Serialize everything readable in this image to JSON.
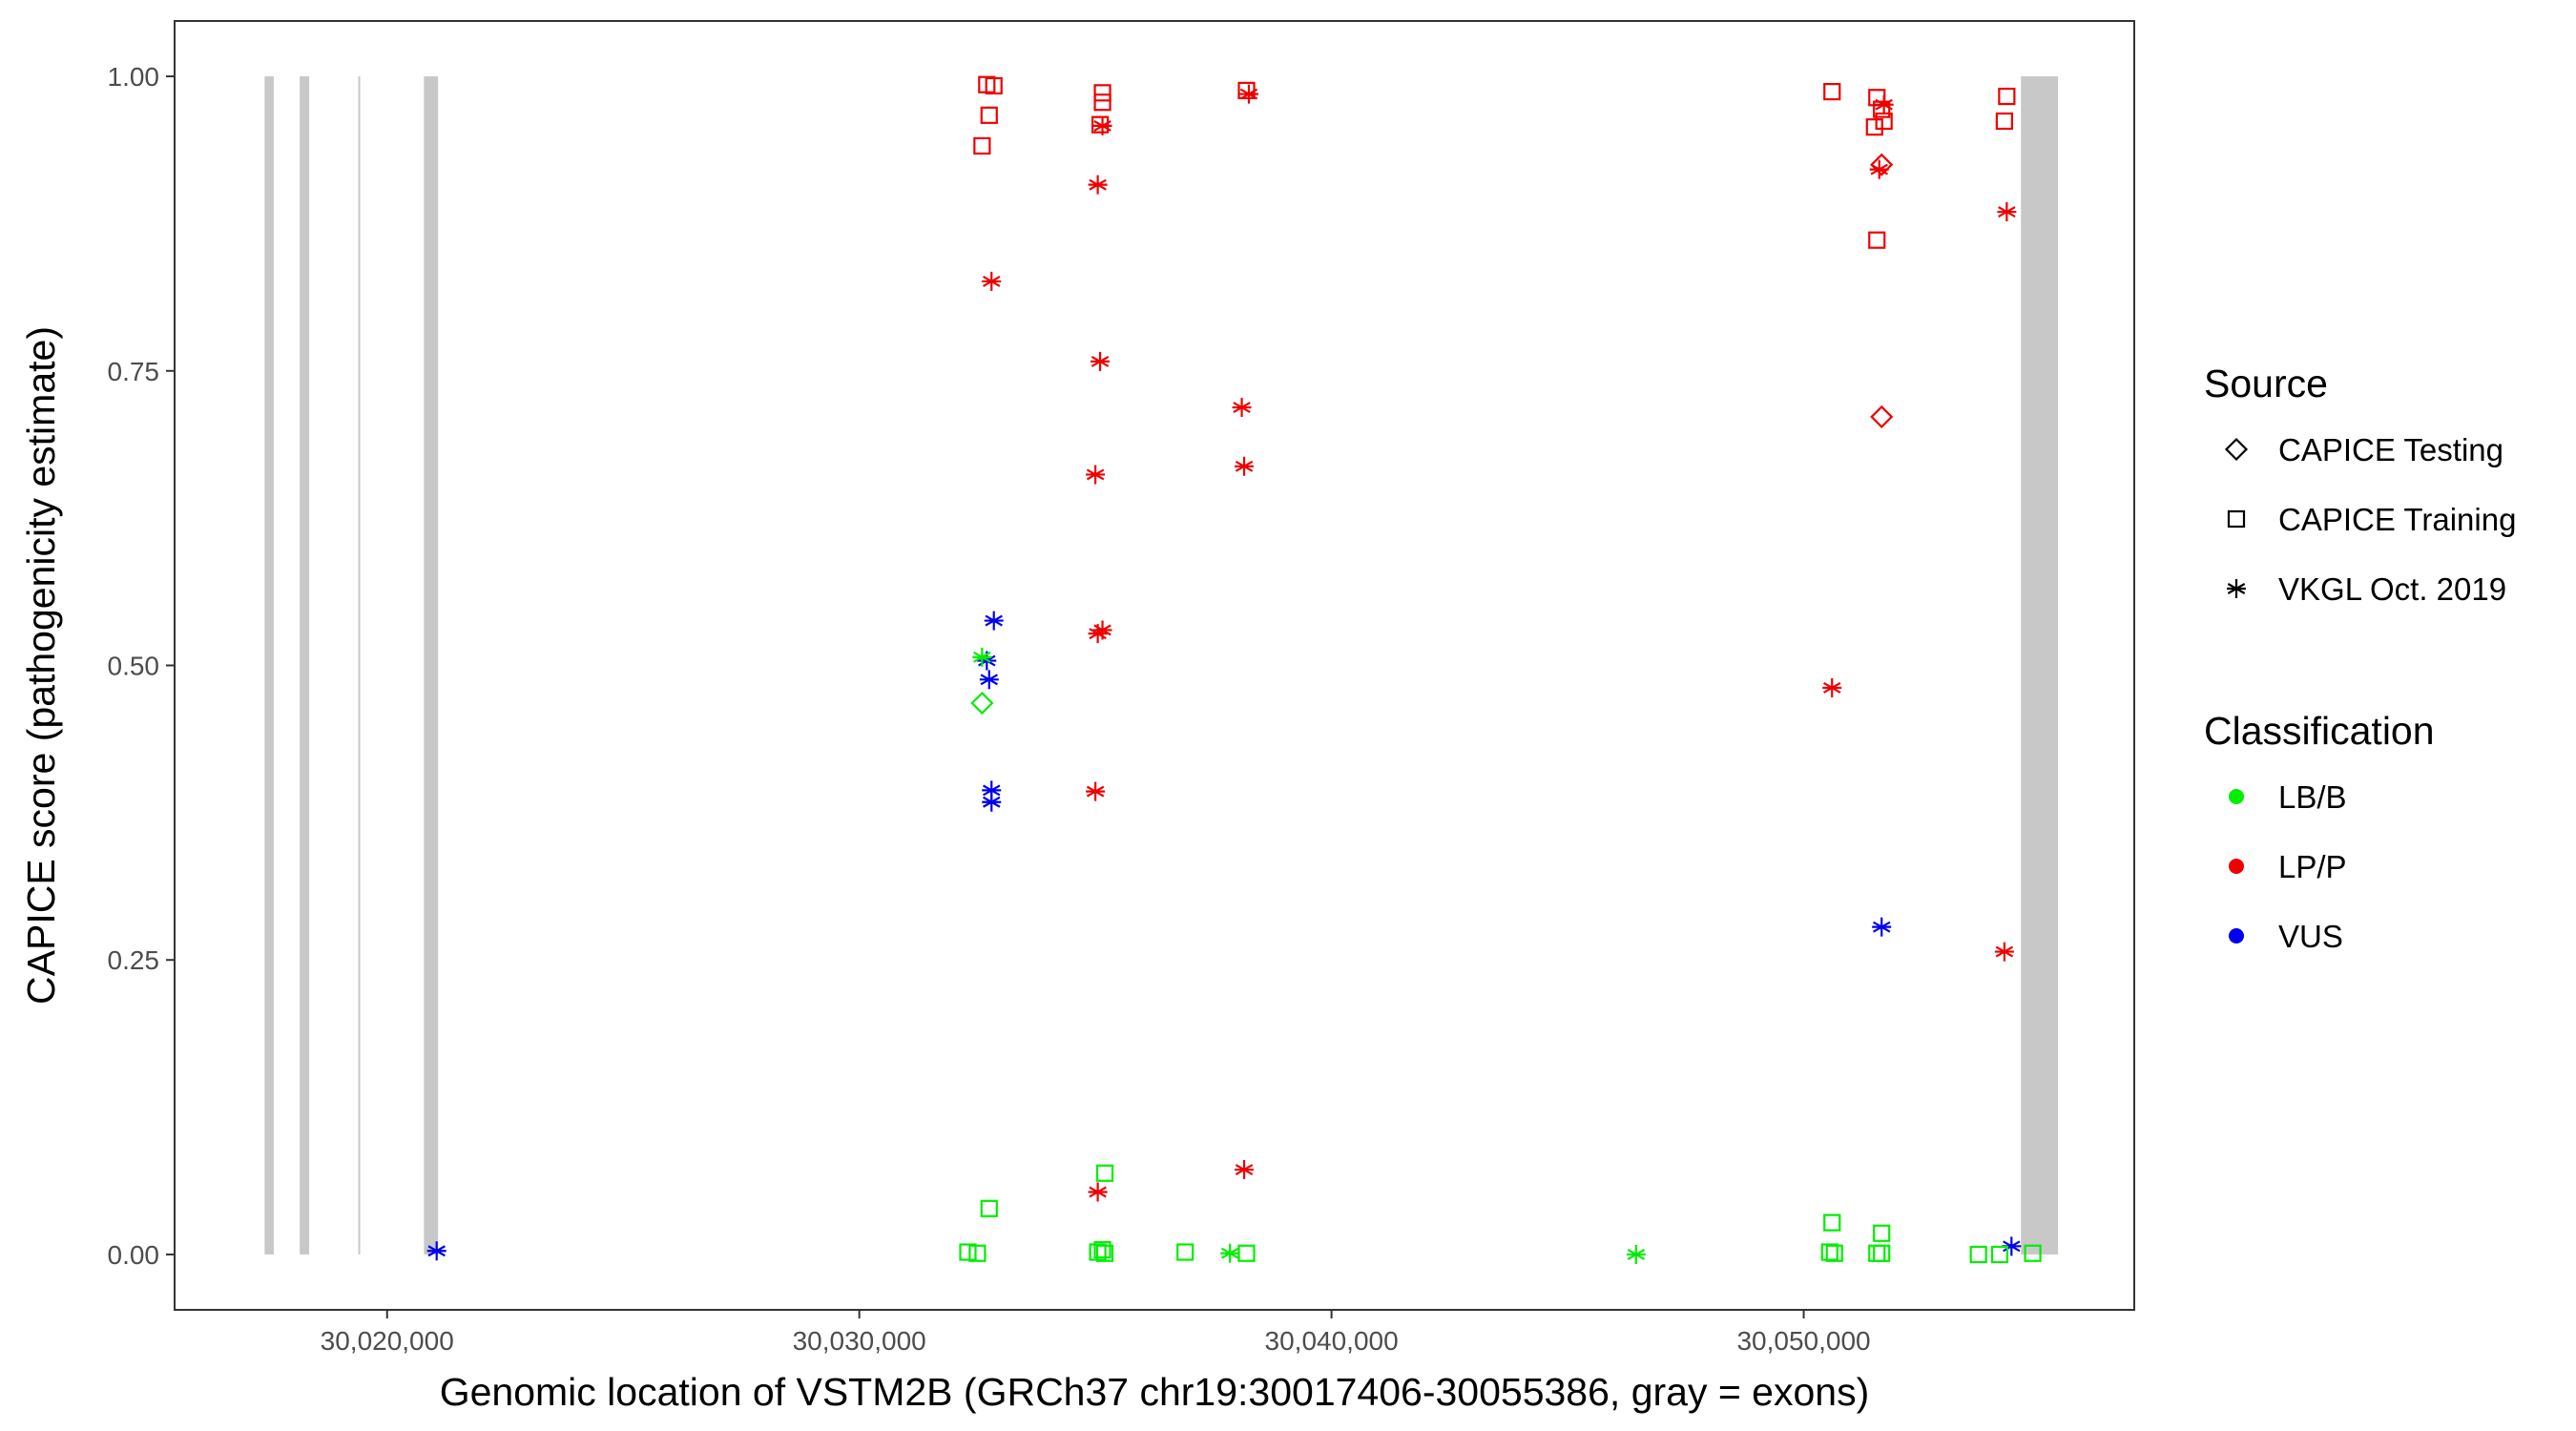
{
  "chart_data": {
    "type": "scatter",
    "xlabel": "Genomic location of VSTM2B (GRCh37 chr19:30017406-30055386, gray = exons)",
    "ylabel": "CAPICE score (pathogenicity estimate)",
    "xlim": [
      30015500,
      30057000
    ],
    "ylim": [
      -0.047,
      1.047
    ],
    "x_ticks": [
      30020000,
      30030000,
      30040000,
      30050000
    ],
    "x_tick_labels": [
      "30,020,000",
      "30,030,000",
      "30,040,000",
      "30,050,000"
    ],
    "y_ticks": [
      0,
      0.25,
      0.5,
      0.75,
      1
    ],
    "y_tick_labels": [
      "0.00",
      "0.25",
      "0.50",
      "0.75",
      "1.00"
    ],
    "grid": false,
    "legend_position": "right",
    "exons": [
      {
        "start": 30017406,
        "end": 30017600
      },
      {
        "start": 30018150,
        "end": 30018350
      },
      {
        "start": 30019390,
        "end": 30019430
      },
      {
        "start": 30020780,
        "end": 30021080
      },
      {
        "start": 30054600,
        "end": 30055386
      }
    ],
    "exon_color": "#c8c8c8",
    "legend_source": {
      "title": "Source",
      "entries": [
        {
          "label": "CAPICE Testing",
          "shape": "diamond"
        },
        {
          "label": "CAPICE Training",
          "shape": "square"
        },
        {
          "label": "VKGL Oct. 2019",
          "shape": "asterisk"
        }
      ]
    },
    "legend_classification": {
      "title": "Classification",
      "entries": [
        {
          "label": "LB/B",
          "color": "#00ee00"
        },
        {
          "label": "LP/P",
          "color": "#ee0000"
        },
        {
          "label": "VUS",
          "color": "#0000ee"
        }
      ]
    },
    "points": [
      {
        "x": 30021050,
        "y": 0.003,
        "shape": "asterisk",
        "cls": "VUS"
      },
      {
        "x": 30032700,
        "y": 0.993,
        "shape": "square",
        "cls": "LP/P"
      },
      {
        "x": 30032850,
        "y": 0.992,
        "shape": "square",
        "cls": "LP/P"
      },
      {
        "x": 30032750,
        "y": 0.967,
        "shape": "square",
        "cls": "LP/P"
      },
      {
        "x": 30032600,
        "y": 0.941,
        "shape": "square",
        "cls": "LP/P"
      },
      {
        "x": 30032800,
        "y": 0.826,
        "shape": "asterisk",
        "cls": "LP/P"
      },
      {
        "x": 30035150,
        "y": 0.986,
        "shape": "square",
        "cls": "LP/P"
      },
      {
        "x": 30035150,
        "y": 0.978,
        "shape": "square",
        "cls": "LP/P"
      },
      {
        "x": 30035100,
        "y": 0.959,
        "shape": "square",
        "cls": "LP/P"
      },
      {
        "x": 30035150,
        "y": 0.958,
        "shape": "asterisk",
        "cls": "LP/P"
      },
      {
        "x": 30035050,
        "y": 0.908,
        "shape": "asterisk",
        "cls": "LP/P"
      },
      {
        "x": 30035100,
        "y": 0.758,
        "shape": "asterisk",
        "cls": "LP/P"
      },
      {
        "x": 30035000,
        "y": 0.662,
        "shape": "asterisk",
        "cls": "LP/P"
      },
      {
        "x": 30035050,
        "y": 0.527,
        "shape": "asterisk",
        "cls": "LP/P"
      },
      {
        "x": 30035150,
        "y": 0.53,
        "shape": "asterisk",
        "cls": "LP/P"
      },
      {
        "x": 30035000,
        "y": 0.393,
        "shape": "asterisk",
        "cls": "LP/P"
      },
      {
        "x": 30035050,
        "y": 0.053,
        "shape": "asterisk",
        "cls": "LP/P"
      },
      {
        "x": 30038200,
        "y": 0.988,
        "shape": "square",
        "cls": "LP/P"
      },
      {
        "x": 30038250,
        "y": 0.985,
        "shape": "asterisk",
        "cls": "LP/P"
      },
      {
        "x": 30038100,
        "y": 0.719,
        "shape": "asterisk",
        "cls": "LP/P"
      },
      {
        "x": 30038150,
        "y": 0.669,
        "shape": "asterisk",
        "cls": "LP/P"
      },
      {
        "x": 30038150,
        "y": 0.072,
        "shape": "asterisk",
        "cls": "LP/P"
      },
      {
        "x": 30050600,
        "y": 0.987,
        "shape": "square",
        "cls": "LP/P"
      },
      {
        "x": 30051550,
        "y": 0.982,
        "shape": "square",
        "cls": "LP/P"
      },
      {
        "x": 30051700,
        "y": 0.976,
        "shape": "asterisk",
        "cls": "LP/P"
      },
      {
        "x": 30051650,
        "y": 0.972,
        "shape": "square",
        "cls": "LP/P"
      },
      {
        "x": 30051700,
        "y": 0.962,
        "shape": "square",
        "cls": "LP/P"
      },
      {
        "x": 30051500,
        "y": 0.957,
        "shape": "square",
        "cls": "LP/P"
      },
      {
        "x": 30051650,
        "y": 0.925,
        "shape": "diamond",
        "cls": "LP/P"
      },
      {
        "x": 30051600,
        "y": 0.921,
        "shape": "asterisk",
        "cls": "LP/P"
      },
      {
        "x": 30051550,
        "y": 0.861,
        "shape": "square",
        "cls": "LP/P"
      },
      {
        "x": 30051650,
        "y": 0.711,
        "shape": "diamond",
        "cls": "LP/P"
      },
      {
        "x": 30050600,
        "y": 0.481,
        "shape": "asterisk",
        "cls": "LP/P"
      },
      {
        "x": 30054300,
        "y": 0.983,
        "shape": "square",
        "cls": "LP/P"
      },
      {
        "x": 30054250,
        "y": 0.962,
        "shape": "square",
        "cls": "LP/P"
      },
      {
        "x": 30054300,
        "y": 0.885,
        "shape": "asterisk",
        "cls": "LP/P"
      },
      {
        "x": 30054250,
        "y": 0.257,
        "shape": "asterisk",
        "cls": "LP/P"
      },
      {
        "x": 30032850,
        "y": 0.538,
        "shape": "asterisk",
        "cls": "VUS"
      },
      {
        "x": 30032700,
        "y": 0.504,
        "shape": "asterisk",
        "cls": "VUS"
      },
      {
        "x": 30032750,
        "y": 0.488,
        "shape": "asterisk",
        "cls": "VUS"
      },
      {
        "x": 30032800,
        "y": 0.394,
        "shape": "asterisk",
        "cls": "VUS"
      },
      {
        "x": 30032800,
        "y": 0.384,
        "shape": "asterisk",
        "cls": "VUS"
      },
      {
        "x": 30051650,
        "y": 0.278,
        "shape": "asterisk",
        "cls": "VUS"
      },
      {
        "x": 30054400,
        "y": 0.007,
        "shape": "asterisk",
        "cls": "VUS"
      },
      {
        "x": 30032600,
        "y": 0.507,
        "shape": "asterisk",
        "cls": "LB/B"
      },
      {
        "x": 30032600,
        "y": 0.468,
        "shape": "diamond",
        "cls": "LB/B"
      },
      {
        "x": 30032750,
        "y": 0.039,
        "shape": "square",
        "cls": "LB/B"
      },
      {
        "x": 30032300,
        "y": 0.002,
        "shape": "square",
        "cls": "LB/B"
      },
      {
        "x": 30032500,
        "y": 0.001,
        "shape": "square",
        "cls": "LB/B"
      },
      {
        "x": 30035200,
        "y": 0.069,
        "shape": "square",
        "cls": "LB/B"
      },
      {
        "x": 30035150,
        "y": 0.004,
        "shape": "square",
        "cls": "LB/B"
      },
      {
        "x": 30035050,
        "y": 0.002,
        "shape": "square",
        "cls": "LB/B"
      },
      {
        "x": 30035200,
        "y": 0.001,
        "shape": "square",
        "cls": "LB/B"
      },
      {
        "x": 30036900,
        "y": 0.002,
        "shape": "square",
        "cls": "LB/B"
      },
      {
        "x": 30037850,
        "y": 0.001,
        "shape": "asterisk",
        "cls": "LB/B"
      },
      {
        "x": 30038200,
        "y": 0.001,
        "shape": "square",
        "cls": "LB/B"
      },
      {
        "x": 30046450,
        "y": 0.0,
        "shape": "asterisk",
        "cls": "LB/B"
      },
      {
        "x": 30050600,
        "y": 0.027,
        "shape": "square",
        "cls": "LB/B"
      },
      {
        "x": 30050550,
        "y": 0.002,
        "shape": "square",
        "cls": "LB/B"
      },
      {
        "x": 30050650,
        "y": 0.001,
        "shape": "square",
        "cls": "LB/B"
      },
      {
        "x": 30051650,
        "y": 0.018,
        "shape": "square",
        "cls": "LB/B"
      },
      {
        "x": 30051550,
        "y": 0.001,
        "shape": "square",
        "cls": "LB/B"
      },
      {
        "x": 30051650,
        "y": 0.001,
        "shape": "square",
        "cls": "LB/B"
      },
      {
        "x": 30053700,
        "y": 0.0,
        "shape": "square",
        "cls": "LB/B"
      },
      {
        "x": 30054150,
        "y": 0.0,
        "shape": "square",
        "cls": "LB/B"
      },
      {
        "x": 30054850,
        "y": 0.001,
        "shape": "square",
        "cls": "LB/B"
      }
    ]
  }
}
